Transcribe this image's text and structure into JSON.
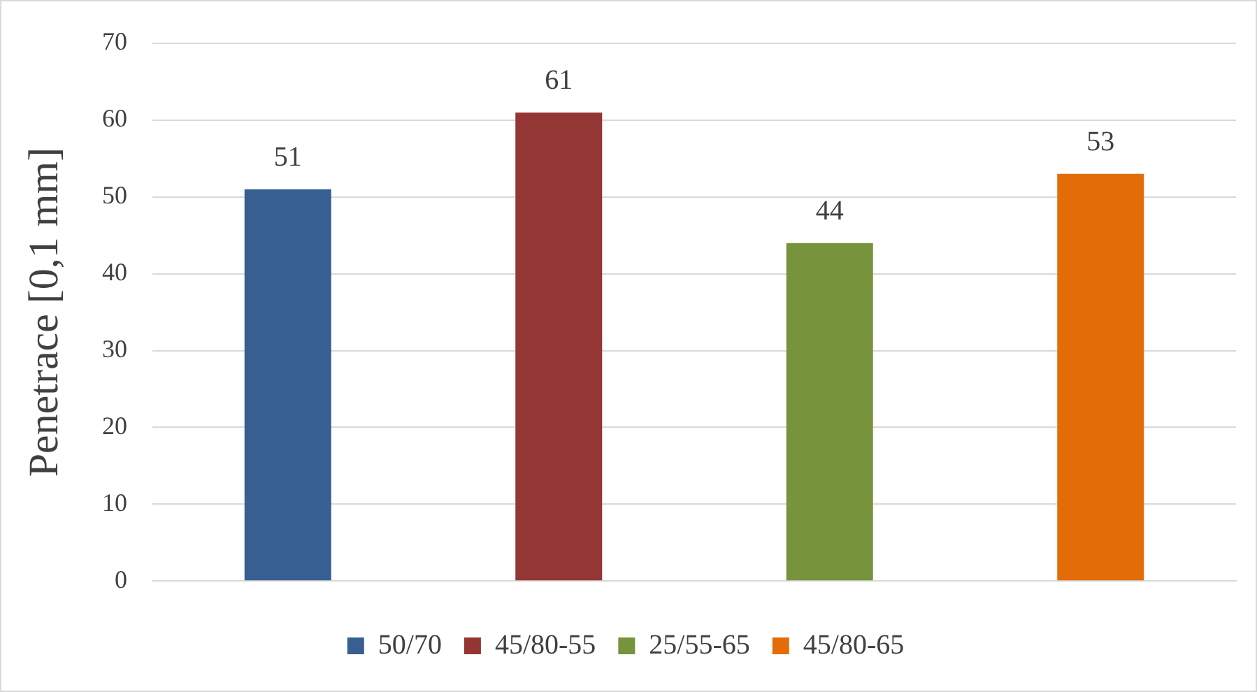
{
  "chart_data": {
    "type": "bar",
    "ylabel": "Penetrace [0,1 mm]",
    "categories": [
      null
    ],
    "series": [
      {
        "name": "50/70",
        "color": "#375f91",
        "values": [
          51
        ]
      },
      {
        "name": "45/80-55",
        "color": "#943634",
        "values": [
          61
        ]
      },
      {
        "name": "25/55-65",
        "color": "#77933c",
        "values": [
          44
        ]
      },
      {
        "name": "45/80-65",
        "color": "#e36c09",
        "values": [
          53
        ]
      }
    ],
    "ylim": [
      0,
      70
    ],
    "yticks": [
      0,
      10,
      20,
      30,
      40,
      50,
      60,
      70
    ],
    "grid": "y",
    "legend": "bottom",
    "data_labels": true
  }
}
